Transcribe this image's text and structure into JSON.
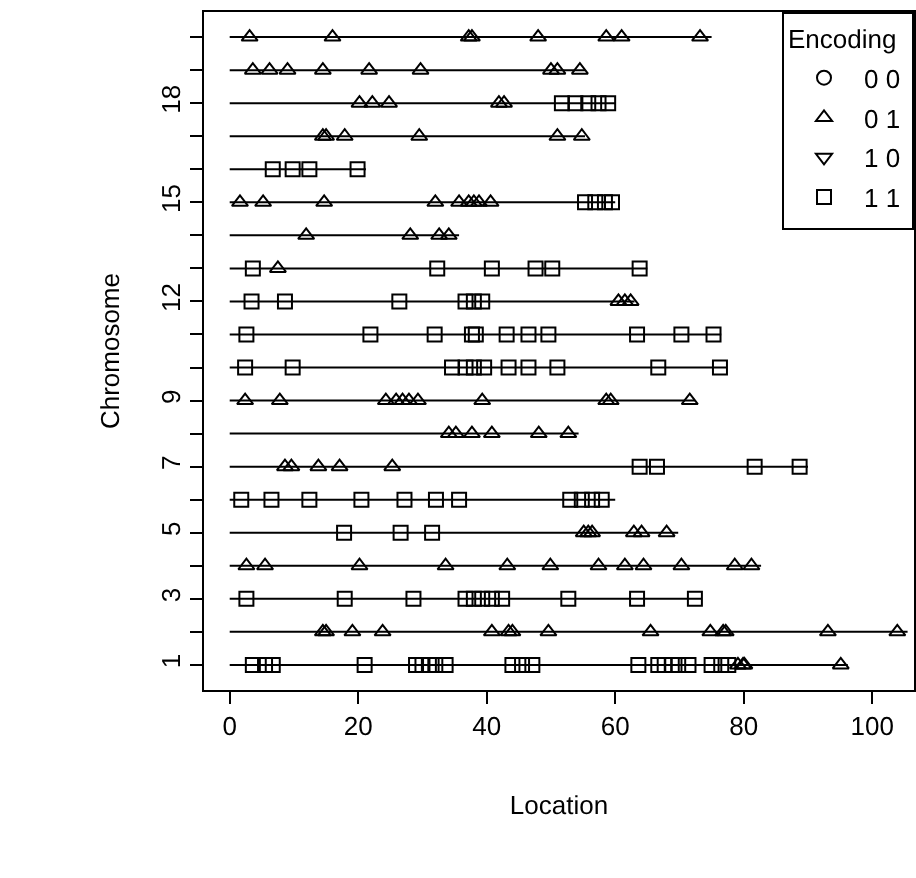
{
  "chart_data": {
    "type": "scatter",
    "xlabel": "Location",
    "ylabel": "Chromosome",
    "legend_title": "Encoding",
    "legend": "top right",
    "xlim": [
      -4,
      106.5
    ],
    "xticks": [
      0,
      20,
      40,
      60,
      80,
      100
    ],
    "ylim": [
      0.24,
      20.76
    ],
    "yticks": [
      1,
      {
        "value": 2,
        "label": null
      },
      3,
      {
        "value": 4,
        "label": null
      },
      5,
      {
        "value": 6,
        "label": null
      },
      7,
      {
        "value": 8,
        "label": null
      },
      9,
      {
        "value": 10,
        "label": null
      },
      {
        "value": 11,
        "label": null
      },
      12,
      {
        "value": 13,
        "label": null
      },
      {
        "value": 14,
        "label": null
      },
      15,
      {
        "value": 16,
        "label": null
      },
      {
        "value": 17,
        "label": null
      },
      18,
      {
        "value": 19,
        "label": null
      },
      {
        "value": 20,
        "label": null
      }
    ],
    "series": [
      {
        "type": "line",
        "color": "#000000",
        "marker": "none",
        "x": [
          0,
          96.2
        ],
        "values": [
          1,
          1
        ]
      },
      {
        "type": "line",
        "color": "#000000",
        "marker": "none",
        "x": [
          0,
          105.5
        ],
        "values": [
          2,
          2
        ]
      },
      {
        "type": "line",
        "color": "#000000",
        "marker": "none",
        "x": [
          0,
          73.4
        ],
        "values": [
          3,
          3
        ]
      },
      {
        "type": "line",
        "color": "#000000",
        "marker": "none",
        "x": [
          0,
          82.7
        ],
        "values": [
          4,
          4
        ]
      },
      {
        "type": "line",
        "color": "#000000",
        "marker": "none",
        "x": [
          0,
          69.8
        ],
        "values": [
          5,
          5
        ]
      },
      {
        "type": "line",
        "color": "#000000",
        "marker": "none",
        "x": [
          0,
          60
        ],
        "values": [
          6,
          6
        ]
      },
      {
        "type": "line",
        "color": "#000000",
        "marker": "none",
        "x": [
          0,
          90
        ],
        "values": [
          7,
          7
        ]
      },
      {
        "type": "line",
        "color": "#000000",
        "marker": "none",
        "x": [
          0,
          54.3
        ],
        "values": [
          8,
          8
        ]
      },
      {
        "type": "line",
        "color": "#000000",
        "marker": "none",
        "x": [
          0,
          72.4
        ],
        "values": [
          9,
          9
        ]
      },
      {
        "type": "line",
        "color": "#000000",
        "marker": "none",
        "x": [
          0,
          77.3
        ],
        "values": [
          10,
          10
        ]
      },
      {
        "type": "line",
        "color": "#000000",
        "marker": "none",
        "x": [
          0,
          76.5
        ],
        "values": [
          11,
          11
        ]
      },
      {
        "type": "line",
        "color": "#000000",
        "marker": "none",
        "x": [
          0,
          63
        ],
        "values": [
          12,
          12
        ]
      },
      {
        "type": "line",
        "color": "#000000",
        "marker": "none",
        "x": [
          0,
          65
        ],
        "values": [
          13,
          13
        ]
      },
      {
        "type": "line",
        "color": "#000000",
        "marker": "none",
        "x": [
          0,
          35.7
        ],
        "values": [
          14,
          14
        ]
      },
      {
        "type": "line",
        "color": "#000000",
        "marker": "none",
        "x": [
          0,
          60
        ],
        "values": [
          15,
          15
        ]
      },
      {
        "type": "line",
        "color": "#000000",
        "marker": "none",
        "x": [
          0,
          21.2
        ],
        "values": [
          16,
          16
        ]
      },
      {
        "type": "line",
        "color": "#000000",
        "marker": "none",
        "x": [
          0,
          55.3
        ],
        "values": [
          17,
          17
        ]
      },
      {
        "type": "line",
        "color": "#000000",
        "marker": "none",
        "x": [
          0,
          60
        ],
        "values": [
          18,
          18
        ]
      },
      {
        "type": "line",
        "color": "#000000",
        "marker": "none",
        "x": [
          0,
          55.3
        ],
        "values": [
          19,
          19
        ]
      },
      {
        "type": "line",
        "color": "#000000",
        "marker": "none",
        "x": [
          0,
          75
        ],
        "values": [
          20,
          20
        ]
      },
      {
        "name": "0 0",
        "color": "#000000",
        "marker": "circle"
      },
      {
        "name": "0 1",
        "color": "#000000",
        "marker": "triangle",
        "x": [
          79.1,
          79.9,
          80.1,
          95.1,
          14.5,
          15,
          19.1,
          23.8,
          40.8,
          43.4,
          44,
          49.6,
          65.5,
          74.8,
          76.8,
          77.2,
          93.1,
          103.9,
          2.6,
          5.5,
          20.2,
          33.6,
          43.2,
          49.9,
          57.4,
          61.5,
          64.4,
          70.3,
          78.6,
          81.2,
          55.1,
          55.8,
          56.4,
          62.9,
          64.1,
          68,
          8.6,
          9.6,
          13.8,
          17.1,
          25.3,
          34.1,
          35.2,
          37.7,
          40.8,
          48.1,
          52.7,
          2.4,
          7.8,
          24.3,
          25.9,
          26.9,
          27.9,
          29.3,
          39.3,
          58.6,
          59.3,
          71.6,
          60.5,
          61.5,
          62.4,
          7.5,
          11.9,
          28.1,
          32.6,
          34.1,
          1.6,
          5.2,
          14.7,
          32,
          35.7,
          37.2,
          38,
          38.8,
          40.6,
          14.5,
          15,
          17.9,
          29.5,
          51,
          54.8,
          20.2,
          22.2,
          24.8,
          41.9,
          42.7,
          3.6,
          6.2,
          9,
          14.5,
          21.7,
          29.7,
          50,
          51,
          54.5,
          3.1,
          16,
          37.2,
          37.7,
          48,
          58.6,
          61,
          73.2
        ],
        "values": [
          1,
          1,
          1,
          1,
          2,
          2,
          2,
          2,
          2,
          2,
          2,
          2,
          2,
          2,
          2,
          2,
          2,
          2,
          4,
          4,
          4,
          4,
          4,
          4,
          4,
          4,
          4,
          4,
          4,
          4,
          5,
          5,
          5,
          5,
          5,
          5,
          7,
          7,
          7,
          7,
          7,
          8,
          8,
          8,
          8,
          8,
          8,
          9,
          9,
          9,
          9,
          9,
          9,
          9,
          9,
          9,
          9,
          9,
          12,
          12,
          12,
          13,
          14,
          14,
          14,
          14,
          15,
          15,
          15,
          15,
          15,
          15,
          15,
          15,
          15,
          17,
          17,
          17,
          17,
          17,
          17,
          18,
          18,
          18,
          18,
          18,
          19,
          19,
          19,
          19,
          19,
          19,
          19,
          19,
          19,
          20,
          20,
          20,
          20,
          20,
          20,
          20,
          20
        ]
      },
      {
        "name": "1 0",
        "color": "#000000",
        "marker": "triangle-down"
      },
      {
        "name": "1 1",
        "color": "#000000",
        "marker": "square",
        "x": [
          3.6,
          5.5,
          6.7,
          21,
          29,
          30,
          31,
          32,
          33.6,
          44,
          45.5,
          47.1,
          63.6,
          66.7,
          67.7,
          68.8,
          69.8,
          71.4,
          75,
          76.5,
          77.6,
          2.6,
          17.9,
          28.6,
          36.7,
          38,
          39.3,
          40.8,
          42.4,
          52.7,
          63.4,
          72.4,
          17.8,
          26.6,
          31.5,
          1.8,
          6.5,
          12.4,
          20.5,
          27.2,
          32.1,
          35.7,
          53,
          54.8,
          56.4,
          57.9,
          63.8,
          66.5,
          81.7,
          88.7,
          2.4,
          9.8,
          34.6,
          36.7,
          38,
          39.6,
          43.4,
          46.5,
          51,
          66.7,
          76.3,
          2.6,
          21.9,
          31.9,
          37.7,
          38.3,
          43.1,
          46.5,
          49.6,
          63.4,
          70.3,
          75.3,
          3.4,
          8.6,
          26.4,
          36.7,
          38,
          39.3,
          3.6,
          32.3,
          40.8,
          47.6,
          50.2,
          63.8,
          55.3,
          56.9,
          58.4,
          59.5,
          6.7,
          9.8,
          12.4,
          19.9,
          51.7,
          53.8,
          55.8,
          57.4,
          58.9
        ],
        "values": [
          1,
          1,
          1,
          1,
          1,
          1,
          1,
          1,
          1,
          1,
          1,
          1,
          1,
          1,
          1,
          1,
          1,
          1,
          1,
          1,
          1,
          3,
          3,
          3,
          3,
          3,
          3,
          3,
          3,
          3,
          3,
          3,
          5,
          5,
          5,
          6,
          6,
          6,
          6,
          6,
          6,
          6,
          6,
          6,
          6,
          6,
          7,
          7,
          7,
          7,
          10,
          10,
          10,
          10,
          10,
          10,
          10,
          10,
          10,
          10,
          10,
          11,
          11,
          11,
          11,
          11,
          11,
          11,
          11,
          11,
          11,
          11,
          12,
          12,
          12,
          12,
          12,
          12,
          13,
          13,
          13,
          13,
          13,
          13,
          15,
          15,
          15,
          15,
          16,
          16,
          16,
          16,
          18,
          18,
          18,
          18,
          18
        ]
      }
    ]
  }
}
